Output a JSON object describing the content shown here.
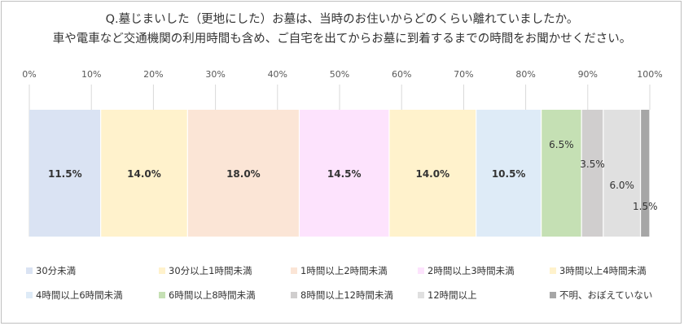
{
  "chart_data": {
    "type": "bar",
    "orientation": "horizontal-stacked-100",
    "title": [
      "Q.墓じまいした（更地にした）お墓は、当時のお住いからどのくらい離れていましたか。",
      "車や電車など交通機関の利用時間も含め、ご自宅を出てからお墓に到着するまでの時間をお聞かせください。"
    ],
    "xlim": [
      0,
      100
    ],
    "ticks": [
      "0%",
      "10%",
      "20%",
      "30%",
      "40%",
      "50%",
      "60%",
      "70%",
      "80%",
      "90%",
      "100%"
    ],
    "grid": true,
    "legend_position": "bottom",
    "series": [
      {
        "name": "30分未満",
        "value": 11.5,
        "label": "11.5%",
        "color": "#dae3f3"
      },
      {
        "name": "30分以上1時間未満",
        "value": 14.0,
        "label": "14.0%",
        "color": "#fff2cc"
      },
      {
        "name": "1時間以上2時間未満",
        "value": 18.0,
        "label": "18.0%",
        "color": "#fbe5d6"
      },
      {
        "name": "2時間以上3時間未満",
        "value": 14.5,
        "label": "14.5%",
        "color": "#fde3fd"
      },
      {
        "name": "3時間以上4時間未満",
        "value": 14.0,
        "label": "14.0%",
        "color": "#fff2cc"
      },
      {
        "name": "4時間以上6時間未満",
        "value": 10.5,
        "label": "10.5%",
        "color": "#deebf7"
      },
      {
        "name": "6時間以上8時間未満",
        "value": 6.5,
        "label": "6.5%",
        "color": "#c5e0b4"
      },
      {
        "name": "8時間以上12時間未満",
        "value": 3.5,
        "label": "3.5%",
        "color": "#d0cece"
      },
      {
        "name": "12時間以上",
        "value": 6.0,
        "label": "6.0%",
        "color": "#e0e0e0"
      },
      {
        "name": "不明、おぼえていない",
        "value": 1.5,
        "label": "1.5%",
        "color": "#a6a6a6"
      }
    ]
  }
}
